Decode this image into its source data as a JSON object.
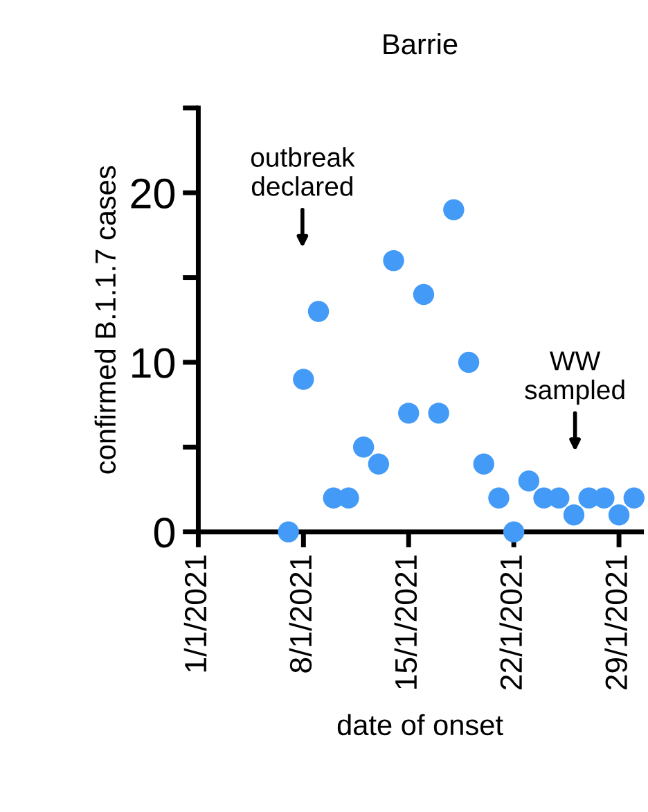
{
  "chart_data": {
    "type": "scatter",
    "title": "Barrie",
    "xlabel": "date of onset",
    "ylabel": "confirmed B.1.1.7 cases",
    "x": [
      "2021-01-07",
      "2021-01-08",
      "2021-01-09",
      "2021-01-10",
      "2021-01-11",
      "2021-01-12",
      "2021-01-13",
      "2021-01-14",
      "2021-01-15",
      "2021-01-16",
      "2021-01-17",
      "2021-01-18",
      "2021-01-19",
      "2021-01-20",
      "2021-01-21",
      "2021-01-22",
      "2021-01-23",
      "2021-01-24",
      "2021-01-25",
      "2021-01-26",
      "2021-01-27",
      "2021-01-28",
      "2021-01-29",
      "2021-01-30"
    ],
    "series": [
      {
        "color": "#439bf7",
        "values": [
          0,
          9,
          13,
          2,
          2,
          5,
          4,
          16,
          7,
          14,
          7,
          19,
          10,
          4,
          2,
          0,
          3,
          2,
          2,
          1,
          2,
          2,
          1,
          2
        ]
      }
    ],
    "marker": "circle",
    "xlim": [
      "2021-01-01",
      "2021-01-30T12:00"
    ],
    "xticks": [
      {
        "value": "2021-01-01",
        "label": "1/1/2021"
      },
      {
        "value": "2021-01-08",
        "label": "8/1/2021"
      },
      {
        "value": "2021-01-15",
        "label": "15/1/2021"
      },
      {
        "value": "2021-01-22",
        "label": "22/1/2021"
      },
      {
        "value": "2021-01-29",
        "label": "29/1/2021"
      }
    ],
    "ylim": [
      0,
      25
    ],
    "yticks": [
      0,
      {
        "value": 5,
        "label": null
      },
      10,
      {
        "value": 15,
        "label": null
      },
      20,
      {
        "value": 25,
        "label": null
      }
    ],
    "grid": false,
    "legend": false,
    "annotations": [
      "outbreak\ndeclared",
      "WW\nsampled"
    ]
  }
}
